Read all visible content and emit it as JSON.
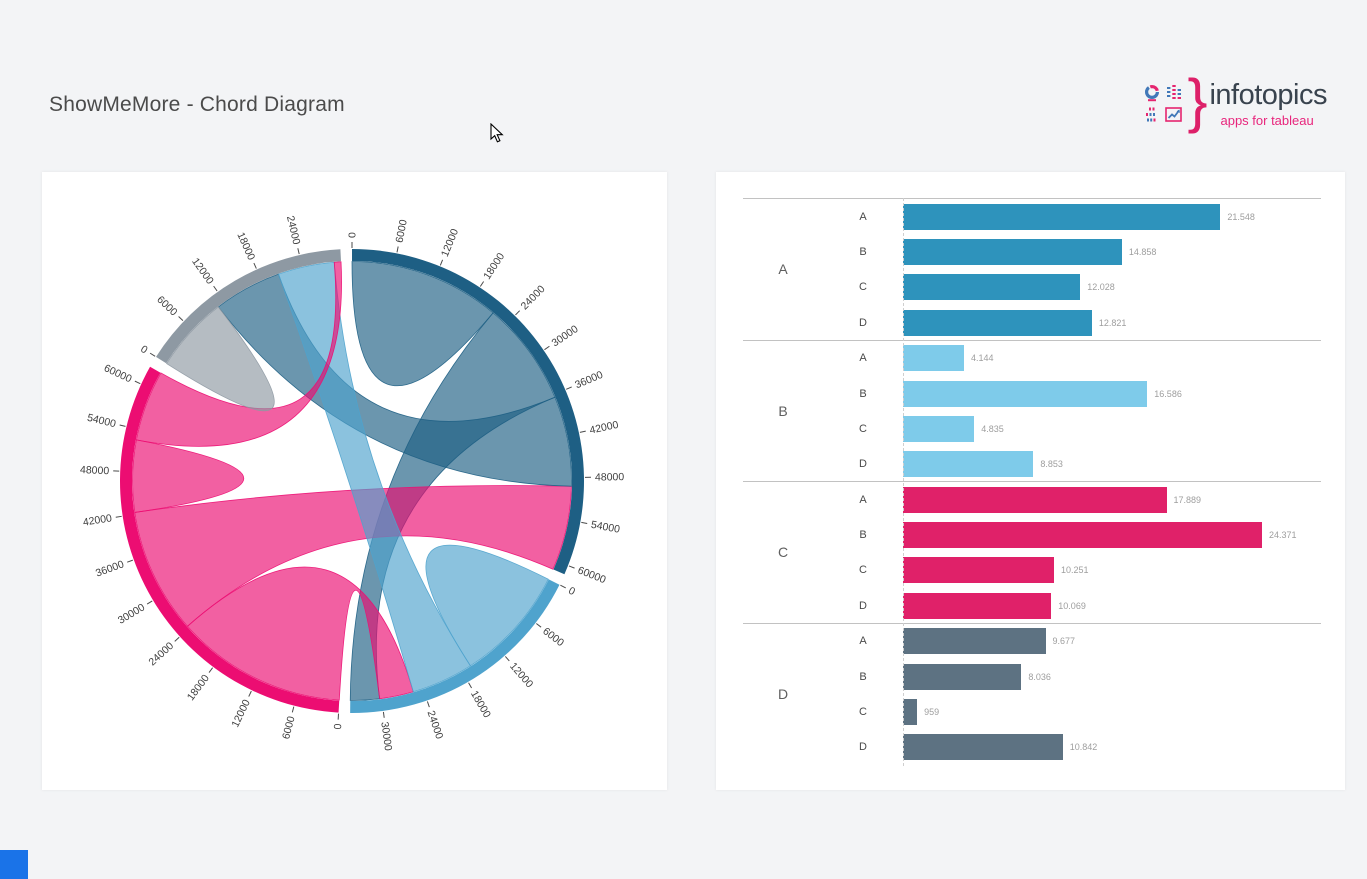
{
  "page": {
    "title": "ShowMeMore - Chord Diagram",
    "background": "#f3f4f6"
  },
  "logo": {
    "brand": "infotopics",
    "tagline": "apps for tableau",
    "brace": "}",
    "brand_color": "#39434e",
    "accent_color": "#e8257c",
    "icon_blue": "#4178b8",
    "icon_pink": "#e5256f",
    "icons": [
      "donut-chart",
      "dotted-bars",
      "dotted-rows",
      "line-chart"
    ]
  },
  "misc": {
    "bottom_left_square_color": "#1a73e8"
  },
  "chart_data": [
    {
      "type": "chord",
      "categories": [
        "A",
        "B",
        "C",
        "D"
      ],
      "matrix": [
        [
          21548,
          14858,
          12028,
          12821
        ],
        [
          4144,
          16586,
          4835,
          8853
        ],
        [
          17889,
          24371,
          10251,
          10069
        ],
        [
          9677,
          8036,
          959,
          10842
        ]
      ],
      "group_totals": [
        61255,
        34418,
        62580,
        29514
      ],
      "arc_colors": [
        "#1e5f84",
        "#4fa3cd",
        "#ec0d72",
        "#8e99a3"
      ],
      "ribbon_opacity": 0.66,
      "tick_interval": 6000,
      "ticks": [
        [
          0,
          6000,
          12000,
          18000,
          24000,
          30000,
          36000,
          42000,
          48000,
          54000,
          60000
        ],
        [
          0,
          6000,
          12000,
          18000,
          24000,
          30000
        ],
        [
          0,
          6000,
          12000,
          18000,
          24000,
          30000,
          36000,
          42000,
          48000,
          54000,
          60000
        ],
        [
          0,
          6000,
          12000,
          18000,
          24000
        ]
      ],
      "tick_label_color": "#3f3f3f",
      "layout": {
        "pad_angle": 0.05,
        "start": "top",
        "direction": "clockwise",
        "sort_subgroups": "descending",
        "ribbon_color_by": "group-of-larger-flow"
      }
    },
    {
      "type": "bar",
      "orientation": "horizontal",
      "value_label_color": "#9e9e9e",
      "max_value": 24371,
      "groups": [
        {
          "label": "A",
          "color": "#2e93bc",
          "rows": [
            {
              "label": "A",
              "value": 21548,
              "display": "21.548"
            },
            {
              "label": "B",
              "value": 14858,
              "display": "14.858"
            },
            {
              "label": "C",
              "value": 12028,
              "display": "12.028"
            },
            {
              "label": "D",
              "value": 12821,
              "display": "12.821"
            }
          ]
        },
        {
          "label": "B",
          "color": "#7ecbea",
          "rows": [
            {
              "label": "A",
              "value": 4144,
              "display": "4.144"
            },
            {
              "label": "B",
              "value": 16586,
              "display": "16.586"
            },
            {
              "label": "C",
              "value": 4835,
              "display": "4.835"
            },
            {
              "label": "D",
              "value": 8853,
              "display": "8.853"
            }
          ]
        },
        {
          "label": "C",
          "color": "#e02169",
          "rows": [
            {
              "label": "A",
              "value": 17889,
              "display": "17.889"
            },
            {
              "label": "B",
              "value": 24371,
              "display": "24.371"
            },
            {
              "label": "C",
              "value": 10251,
              "display": "10.251"
            },
            {
              "label": "D",
              "value": 10069,
              "display": "10.069"
            }
          ]
        },
        {
          "label": "D",
          "color": "#5d7282",
          "rows": [
            {
              "label": "A",
              "value": 9677,
              "display": "9.677"
            },
            {
              "label": "B",
              "value": 8036,
              "display": "8.036"
            },
            {
              "label": "C",
              "value": 959,
              "display": "959"
            },
            {
              "label": "D",
              "value": 10842,
              "display": "10.842"
            }
          ]
        }
      ]
    }
  ]
}
